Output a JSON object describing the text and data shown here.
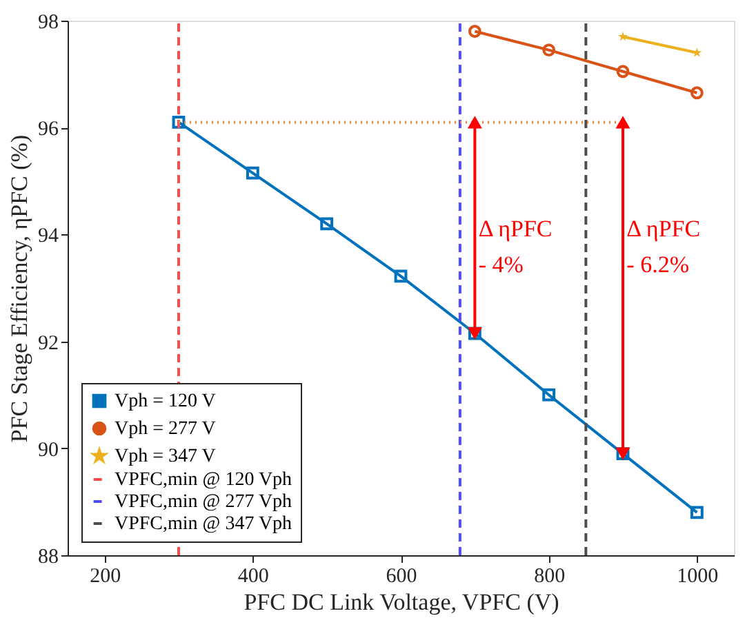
{
  "chart_data": {
    "type": "line",
    "xlabel": "PFC DC Link Voltage, VPFC (V)",
    "ylabel": "PFC Stage Efficiency, ηPFC (%)",
    "xlim": [
      150,
      1050
    ],
    "xticks": [
      200,
      400,
      600,
      800,
      1000
    ],
    "ylim": [
      88,
      98
    ],
    "yticks": [
      88,
      90,
      92,
      94,
      96,
      98
    ],
    "grid": false,
    "legend": "bottom left",
    "series": [
      {
        "name": "Vph = 120 V",
        "color": "#0072bd",
        "marker": "square",
        "line_style": "solid",
        "x": [
          300,
          400,
          500,
          600,
          700,
          800,
          900,
          1000
        ],
        "values": [
          96.1,
          95.15,
          94.2,
          93.22,
          92.15,
          91.0,
          89.9,
          88.8
        ]
      },
      {
        "name": "Vph = 277 V",
        "color": "#d95319",
        "marker": "circle",
        "line_style": "solid",
        "x": [
          700,
          800,
          900,
          1000
        ],
        "values": [
          97.8,
          97.45,
          97.05,
          96.65
        ]
      },
      {
        "name": "Vph = 347 V",
        "color": "#edb120",
        "marker": "star",
        "line_style": "solid",
        "x": [
          900,
          1000
        ],
        "values": [
          97.7,
          97.4
        ]
      },
      {
        "name": "VPFC,min @ 120 Vph",
        "color": "#ff4d4d",
        "marker": "none",
        "line_style": "dashed",
        "x": [
          300,
          300
        ],
        "values": [
          88,
          98
        ]
      },
      {
        "name": "VPFC,min @ 277 Vph",
        "color": "#4d4dff",
        "marker": "none",
        "line_style": "dashed",
        "x": [
          680,
          680
        ],
        "values": [
          88,
          98
        ]
      },
      {
        "name": "VPFC,min @ 347 Vph",
        "color": "#4d4d4d",
        "marker": "none",
        "line_style": "dashed",
        "x": [
          850,
          850
        ],
        "values": [
          88,
          98
        ]
      },
      {
        "color": "#ff8030",
        "marker": "none",
        "line_style": "dotted",
        "x": [
          300,
          900
        ],
        "values": [
          96.1,
          96.1
        ]
      },
      {
        "color": "#ff0000",
        "marker": "triangle",
        "line_style": "solid",
        "x": [
          700,
          700
        ],
        "values": [
          96.1,
          92.15
        ]
      },
      {
        "color": "#ff0000",
        "marker": "triangle",
        "line_style": "solid",
        "x": [
          900,
          900
        ],
        "values": [
          96.1,
          89.9
        ]
      }
    ],
    "annotations": [
      {
        "text": "Δ ηPFC\n- 4%",
        "x": 705,
        "y": 94.3
      },
      {
        "text": "Δ ηPFC\n- 6.2%",
        "x": 905,
        "y": 94.3
      }
    ]
  }
}
